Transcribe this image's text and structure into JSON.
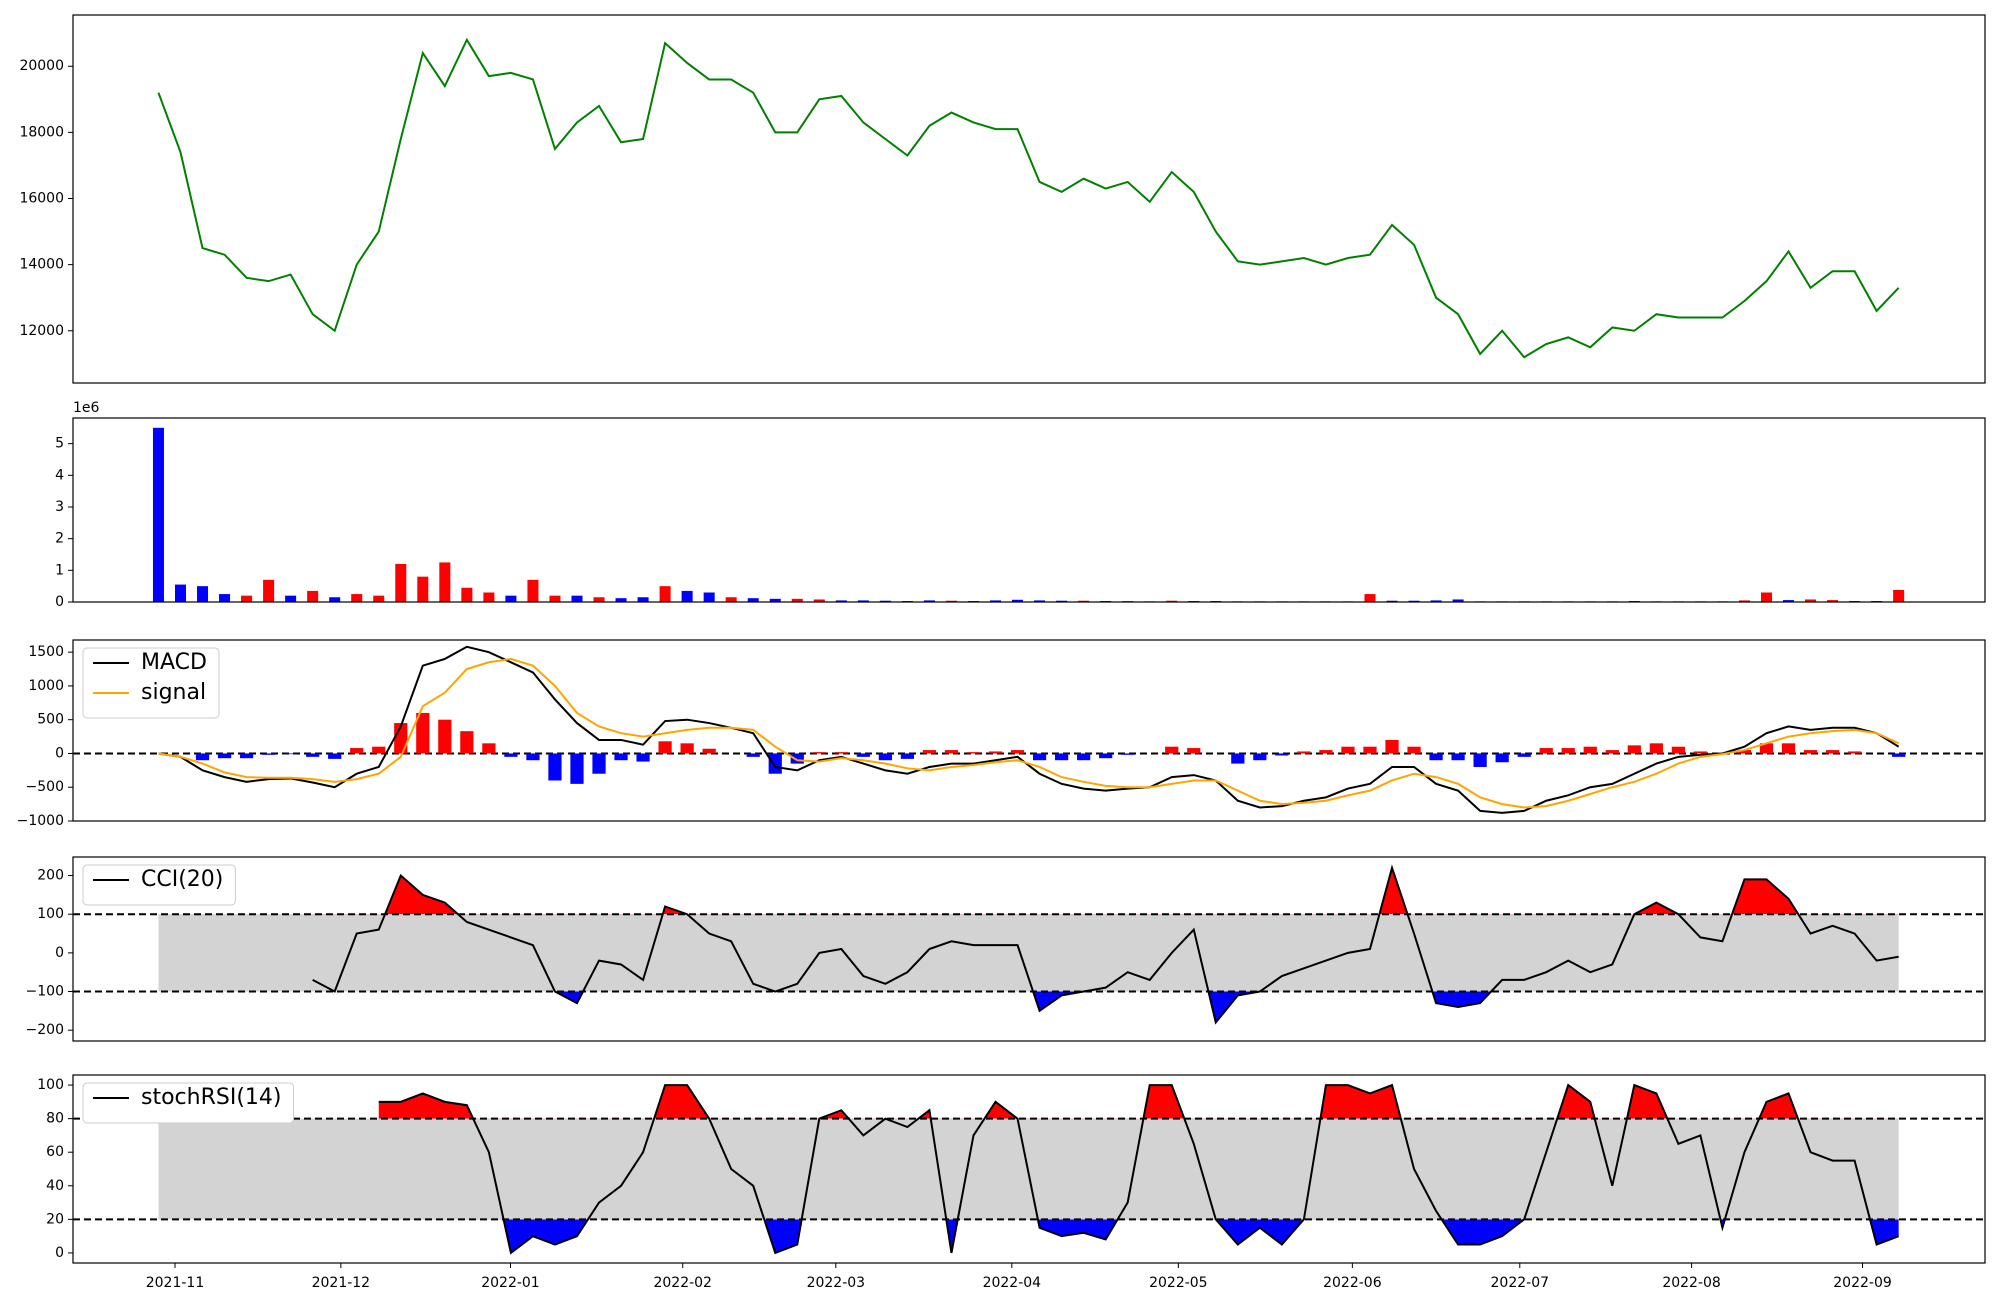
{
  "chart_data": [
    {
      "type": "line",
      "xlim": [
        -3.88,
        82.92
      ],
      "ylim": [
        10420,
        21550
      ],
      "yticks": [
        12000,
        14000,
        16000,
        18000,
        20000
      ],
      "series": [
        {
          "color": "green",
          "values": [
            19200,
            17400,
            14500,
            14300,
            13600,
            13500,
            13700,
            12500,
            12000,
            14000,
            15000,
            17800,
            20400,
            19400,
            20800,
            19700,
            19800,
            19600,
            17500,
            18300,
            18800,
            17700,
            17800,
            20700,
            20100,
            19600,
            19600,
            19200,
            18000,
            18000,
            19000,
            19100,
            18300,
            17800,
            17300,
            18200,
            18600,
            18300,
            18100,
            18100,
            16500,
            16200,
            16600,
            16300,
            16500,
            15900,
            16800,
            16200,
            15000,
            14100,
            14000,
            14100,
            14200,
            14000,
            14200,
            14300,
            15200,
            14600,
            13000,
            12500,
            11300,
            12000,
            11200,
            11600,
            11800,
            11500,
            12100,
            12000,
            12500,
            12400,
            12400,
            12400,
            12900,
            13500,
            14400,
            13300,
            13800,
            13800,
            12600,
            13300
          ]
        }
      ]
    },
    {
      "type": "bar",
      "xlim": [
        -3.88,
        82.92
      ],
      "ylim": [
        0,
        5.81
      ],
      "yticks": [
        0,
        1,
        2,
        3,
        4,
        5
      ],
      "offset_label": "1e6",
      "values": [
        5.5,
        0.55,
        0.5,
        0.25,
        0.2,
        0.7,
        0.2,
        0.35,
        0.15,
        0.25,
        0.2,
        1.2,
        0.8,
        1.25,
        0.45,
        0.3,
        0.2,
        0.7,
        0.2,
        0.2,
        0.15,
        0.12,
        0.15,
        0.5,
        0.35,
        0.3,
        0.15,
        0.12,
        0.1,
        0.1,
        0.08,
        0.05,
        0.05,
        0.04,
        0.03,
        0.05,
        0.04,
        0.03,
        0.05,
        0.07,
        0.05,
        0.04,
        0.04,
        0.03,
        0.03,
        0.02,
        0.04,
        0.03,
        0.03,
        0.02,
        0.02,
        0.02,
        0.02,
        0.02,
        0.02,
        0.25,
        0.04,
        0.04,
        0.05,
        0.08,
        0.02,
        0.02,
        0.02,
        0.02,
        0.02,
        0.02,
        0.02,
        0.03,
        0.02,
        0.02,
        0.02,
        0.02,
        0.05,
        0.3,
        0.06,
        0.08,
        0.06,
        0.03,
        0.03,
        0.38
      ],
      "colors": [
        "blue",
        "blue",
        "blue",
        "blue",
        "red",
        "red",
        "blue",
        "red",
        "blue",
        "red",
        "red",
        "red",
        "red",
        "red",
        "red",
        "red",
        "blue",
        "red",
        "red",
        "blue",
        "red",
        "blue",
        "blue",
        "red",
        "blue",
        "blue",
        "red",
        "blue",
        "blue",
        "red",
        "red",
        "blue",
        "blue",
        "blue",
        "blue",
        "blue",
        "red",
        "blue",
        "blue",
        "blue",
        "blue",
        "blue",
        "red",
        "blue",
        "red",
        "blue",
        "red",
        "blue",
        "blue",
        "blue",
        "blue",
        "blue",
        "blue",
        "blue",
        "red",
        "red",
        "blue",
        "blue",
        "blue",
        "blue",
        "blue",
        "blue",
        "blue",
        "blue",
        "blue",
        "blue",
        "blue",
        "blue",
        "blue",
        "blue",
        "blue",
        "blue",
        "red",
        "red",
        "blue",
        "red",
        "red",
        "blue",
        "blue",
        "red"
      ]
    },
    {
      "type": "line",
      "xlim": [
        -3.88,
        82.92
      ],
      "ylim": [
        -1000,
        1680
      ],
      "yticks": [
        {
          "value": -1000,
          "label": "−1000"
        },
        {
          "value": -500,
          "label": "−500"
        },
        0,
        500,
        1000,
        1500
      ],
      "hlines": [
        0
      ],
      "bars": {
        "pos_color": "red",
        "neg_color": "blue",
        "values": [
          0,
          0,
          -100,
          -70,
          -70,
          -20,
          -10,
          -50,
          -80,
          80,
          100,
          450,
          600,
          500,
          330,
          150,
          -50,
          -100,
          -400,
          -450,
          -300,
          -100,
          -120,
          180,
          150,
          70,
          0,
          -50,
          -300,
          -150,
          20,
          20,
          -50,
          -100,
          -80,
          50,
          50,
          20,
          30,
          50,
          -100,
          -100,
          -100,
          -70,
          -20,
          0,
          100,
          80,
          0,
          -150,
          -100,
          -30,
          30,
          50,
          100,
          100,
          200,
          100,
          -100,
          -100,
          -200,
          -130,
          -50,
          80,
          80,
          100,
          50,
          120,
          150,
          100,
          30,
          10,
          50,
          150,
          150,
          50,
          50,
          30,
          0,
          -50
        ]
      },
      "series": [
        {
          "name": "MACD",
          "color": "black",
          "values": [
            0,
            -50,
            -250,
            -350,
            -420,
            -380,
            -370,
            -430,
            -500,
            -300,
            -200,
            400,
            1300,
            1400,
            1580,
            1500,
            1350,
            1200,
            800,
            450,
            200,
            200,
            130,
            480,
            500,
            450,
            380,
            300,
            -200,
            -250,
            -100,
            -50,
            -150,
            -250,
            -300,
            -200,
            -150,
            -150,
            -100,
            -50,
            -300,
            -450,
            -520,
            -550,
            -520,
            -500,
            -350,
            -320,
            -400,
            -700,
            -800,
            -780,
            -700,
            -650,
            -520,
            -450,
            -200,
            -200,
            -450,
            -550,
            -850,
            -880,
            -850,
            -700,
            -620,
            -500,
            -450,
            -300,
            -150,
            -50,
            -20,
            0,
            100,
            300,
            400,
            350,
            380,
            380,
            300,
            100
          ]
        },
        {
          "name": "signal",
          "color": "orange",
          "values": [
            0,
            -50,
            -150,
            -280,
            -350,
            -360,
            -360,
            -380,
            -420,
            -380,
            -300,
            -50,
            700,
            900,
            1250,
            1350,
            1400,
            1300,
            1000,
            600,
            400,
            300,
            250,
            300,
            350,
            380,
            380,
            350,
            100,
            -100,
            -120,
            -70,
            -100,
            -150,
            -220,
            -250,
            -200,
            -170,
            -130,
            -100,
            -200,
            -350,
            -420,
            -480,
            -500,
            -500,
            -450,
            -400,
            -400,
            -550,
            -700,
            -750,
            -730,
            -700,
            -620,
            -550,
            -400,
            -300,
            -350,
            -450,
            -650,
            -750,
            -800,
            -780,
            -700,
            -600,
            -500,
            -420,
            -300,
            -150,
            -50,
            -10,
            50,
            150,
            250,
            300,
            330,
            350,
            300,
            150
          ]
        }
      ]
    },
    {
      "type": "line",
      "xlim": [
        -3.88,
        82.92
      ],
      "ylim": [
        -228,
        248
      ],
      "yticks": [
        {
          "value": -200,
          "label": "−200"
        },
        {
          "value": -100,
          "label": "−100"
        },
        0,
        100,
        200
      ],
      "hlines": [
        -100,
        100
      ],
      "band": {
        "range": [
          -100,
          100
        ],
        "color": "lightgray"
      },
      "fill_above": {
        "level": 100,
        "color": "red"
      },
      "fill_below": {
        "level": -100,
        "color": "blue"
      },
      "series": [
        {
          "name": "CCI(20)",
          "color": "black",
          "values": [
            null,
            null,
            null,
            null,
            null,
            null,
            null,
            -70,
            -100,
            50,
            60,
            200,
            150,
            130,
            80,
            60,
            40,
            20,
            -100,
            -130,
            -20,
            -30,
            -70,
            120,
            100,
            50,
            30,
            -80,
            -100,
            -80,
            0,
            10,
            -60,
            -80,
            -50,
            10,
            30,
            20,
            20,
            20,
            -150,
            -110,
            -100,
            -90,
            -50,
            -70,
            0,
            60,
            -180,
            -110,
            -100,
            -60,
            -40,
            -20,
            0,
            10,
            220,
            50,
            -130,
            -140,
            -130,
            -70,
            -70,
            -50,
            -20,
            -50,
            -30,
            100,
            130,
            100,
            40,
            30,
            190,
            190,
            140,
            50,
            70,
            50,
            -20,
            -10
          ]
        }
      ]
    },
    {
      "type": "line",
      "xlim": [
        -3.88,
        82.92
      ],
      "ylim": [
        -6,
        106
      ],
      "yticks": [
        0,
        20,
        40,
        60,
        80,
        100
      ],
      "hlines": [
        20,
        80
      ],
      "band": {
        "range": [
          20,
          80
        ],
        "color": "lightgray"
      },
      "fill_above": {
        "level": 80,
        "color": "red"
      },
      "fill_below": {
        "level": 20,
        "color": "blue"
      },
      "xticks": [
        {
          "value": 0.75,
          "label": "2021-11"
        },
        {
          "value": 8.28,
          "label": "2021-12"
        },
        {
          "value": 15.98,
          "label": "2022-01"
        },
        {
          "value": 23.8,
          "label": "2022-02"
        },
        {
          "value": 30.75,
          "label": "2022-03"
        },
        {
          "value": 38.74,
          "label": "2022-04"
        },
        {
          "value": 46.3,
          "label": "2022-05"
        },
        {
          "value": 54.2,
          "label": "2022-06"
        },
        {
          "value": 61.8,
          "label": "2022-07"
        },
        {
          "value": 69.6,
          "label": "2022-08"
        },
        {
          "value": 77.36,
          "label": "2022-09"
        }
      ],
      "series": [
        {
          "name": "stochRSI(14)",
          "color": "black",
          "values": [
            null,
            null,
            null,
            null,
            null,
            null,
            null,
            null,
            null,
            null,
            90,
            90,
            95,
            90,
            88,
            60,
            0,
            10,
            5,
            10,
            30,
            40,
            60,
            100,
            100,
            80,
            50,
            40,
            0,
            5,
            80,
            85,
            70,
            80,
            75,
            85,
            0,
            70,
            90,
            80,
            15,
            10,
            12,
            8,
            30,
            100,
            100,
            65,
            20,
            5,
            15,
            5,
            20,
            100,
            100,
            95,
            100,
            50,
            25,
            5,
            5,
            10,
            20,
            60,
            100,
            90,
            40,
            100,
            95,
            65,
            70,
            15,
            60,
            90,
            95,
            60,
            55,
            55,
            5,
            10
          ]
        }
      ]
    }
  ]
}
